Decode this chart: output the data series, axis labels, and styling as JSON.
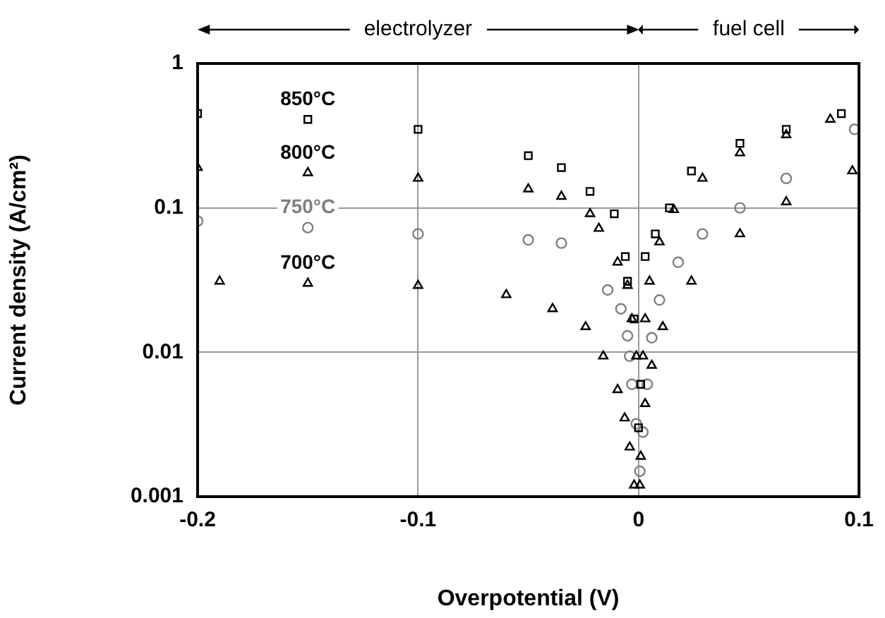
{
  "chart_data": {
    "type": "scatter",
    "xlabel": "Overpotential (V)",
    "ylabel": "Current density (A/cm²)",
    "log": "y",
    "grid": true,
    "legend": false,
    "xlim": [
      -0.2,
      0.1
    ],
    "xticks": [
      -0.2,
      -0.1,
      0,
      0.1
    ],
    "ylim": [
      0.001,
      1
    ],
    "yticks": [
      0.001,
      0.01,
      0.1,
      1
    ],
    "annotations": [
      "electrolyzer",
      "fuel cell"
    ],
    "series": [
      {
        "name": "850°C",
        "color": "#000000",
        "marker": "square",
        "x": [
          -0.2,
          -0.15,
          -0.1,
          -0.05,
          -0.035,
          -0.022,
          -0.011,
          -0.006,
          -0.005,
          -0.002,
          0,
          0.001,
          0.003,
          0.0076,
          0.014,
          0.024,
          0.046,
          0.067,
          0.092
        ],
        "values": [
          0.45,
          0.41,
          0.35,
          0.23,
          0.19,
          0.13,
          0.091,
          0.046,
          0.031,
          0.017,
          0.003,
          0.006,
          0.046,
          0.066,
          0.1,
          0.18,
          0.28,
          0.35,
          0.45
        ]
      },
      {
        "name": "800°C",
        "color": "#000000",
        "marker": "triangle",
        "x": [
          -0.2,
          -0.15,
          -0.1,
          -0.05,
          -0.035,
          -0.022,
          -0.018,
          -0.0095,
          -0.005,
          -0.003,
          -0.001,
          0.002,
          0.003,
          0.005,
          0.0095,
          0.016,
          0.029,
          0.046,
          0.067,
          0.087
        ],
        "values": [
          0.19,
          0.175,
          0.16,
          0.135,
          0.12,
          0.091,
          0.072,
          0.042,
          0.029,
          0.017,
          0.0094,
          0.0094,
          0.017,
          0.031,
          0.058,
          0.097,
          0.16,
          0.24,
          0.32,
          0.41
        ]
      },
      {
        "name": "750°C",
        "color": "#808080",
        "marker": "circle",
        "x": [
          -0.2,
          -0.15,
          -0.1,
          -0.05,
          -0.035,
          -0.014,
          -0.008,
          -0.005,
          -0.004,
          -0.003,
          -0.001,
          0.0006,
          0.002,
          0.004,
          0.006,
          0.0095,
          0.018,
          0.029,
          0.046,
          0.067,
          0.098
        ],
        "values": [
          0.081,
          0.073,
          0.066,
          0.06,
          0.057,
          0.027,
          0.02,
          0.013,
          0.0094,
          0.006,
          0.0032,
          0.0015,
          0.0028,
          0.006,
          0.0126,
          0.023,
          0.042,
          0.066,
          0.1,
          0.16,
          0.35
        ]
      },
      {
        "name": "700°C",
        "color": "#000000",
        "marker": "triangle",
        "x": [
          -0.19,
          -0.15,
          -0.1,
          -0.06,
          -0.039,
          -0.024,
          -0.016,
          -0.0095,
          -0.0063,
          -0.004,
          -0.002,
          0.0006,
          0.001,
          0.003,
          0.006,
          0.011,
          0.024,
          0.046,
          0.067,
          0.097
        ],
        "values": [
          0.031,
          0.03,
          0.029,
          0.025,
          0.02,
          0.015,
          0.0094,
          0.0055,
          0.0035,
          0.0022,
          0.0012,
          0.0012,
          0.0019,
          0.0044,
          0.0081,
          0.015,
          0.031,
          0.066,
          0.11,
          0.18
        ]
      }
    ]
  }
}
